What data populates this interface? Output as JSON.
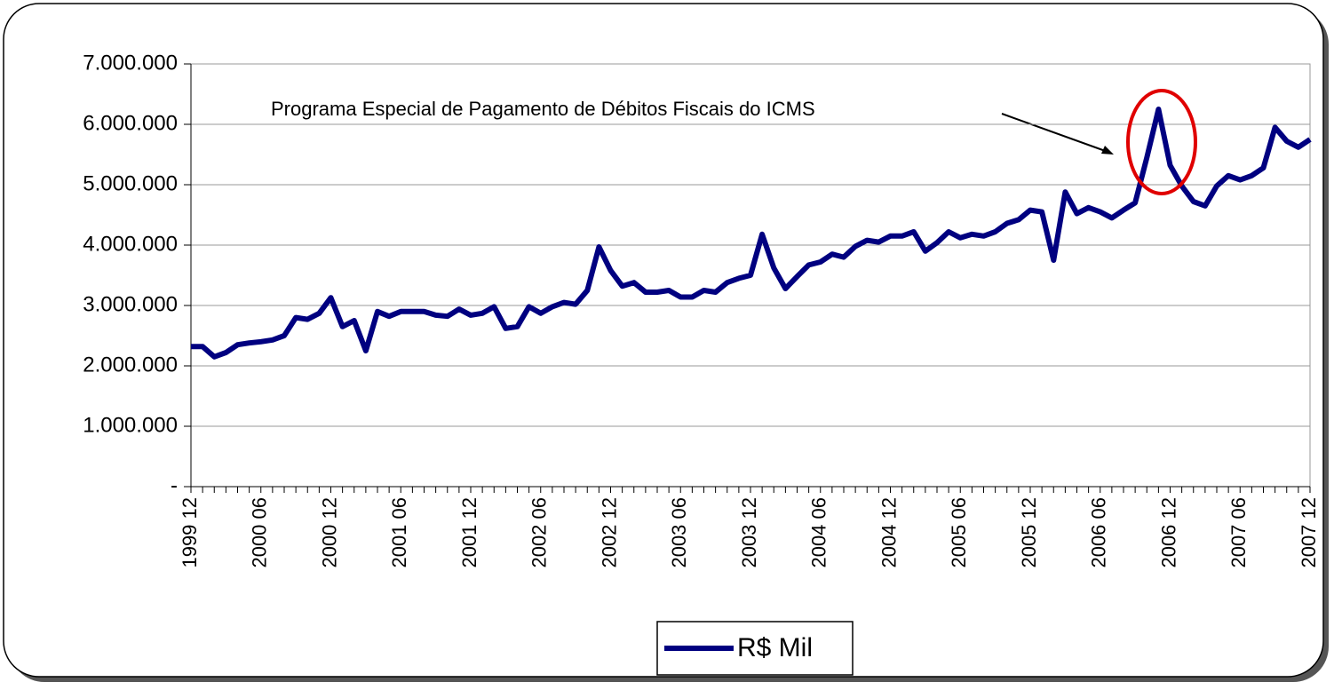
{
  "chart_data": {
    "type": "line",
    "annotation": "Programa Especial de Pagamento de Débitos Fiscais do ICMS",
    "categories": [
      "1999 12",
      null,
      null,
      null,
      null,
      null,
      "2000 06",
      null,
      null,
      null,
      null,
      null,
      "2000 12",
      null,
      null,
      null,
      null,
      null,
      "2001 06",
      null,
      null,
      null,
      null,
      null,
      "2001 12",
      null,
      null,
      null,
      null,
      null,
      "2002 06",
      null,
      null,
      null,
      null,
      null,
      "2002 12",
      null,
      null,
      null,
      null,
      null,
      "2003 06",
      null,
      null,
      null,
      null,
      null,
      "2003 12",
      null,
      null,
      null,
      null,
      null,
      "2004 06",
      null,
      null,
      null,
      null,
      null,
      "2004 12",
      null,
      null,
      null,
      null,
      null,
      "2005 06",
      null,
      null,
      null,
      null,
      null,
      "2005 12",
      null,
      null,
      null,
      null,
      null,
      "2006 06",
      null,
      null,
      null,
      null,
      null,
      "2006 12",
      null,
      null,
      null,
      null,
      null,
      "2007 06",
      null,
      null,
      null,
      null,
      null,
      "2007 12"
    ],
    "series": [
      {
        "name": "R$ Mil",
        "color": "#000080",
        "values": [
          2320000,
          2320000,
          2150000,
          2220000,
          2350000,
          2380000,
          2400000,
          2430000,
          2500000,
          2800000,
          2770000,
          2870000,
          3130000,
          2650000,
          2750000,
          2250000,
          2900000,
          2820000,
          2900000,
          2900000,
          2900000,
          2840000,
          2820000,
          2940000,
          2840000,
          2870000,
          2980000,
          2620000,
          2650000,
          2980000,
          2870000,
          2980000,
          3050000,
          3020000,
          3250000,
          3970000,
          3580000,
          3320000,
          3380000,
          3220000,
          3220000,
          3250000,
          3140000,
          3140000,
          3250000,
          3220000,
          3380000,
          3450000,
          3500000,
          4180000,
          3620000,
          3280000,
          3480000,
          3670000,
          3720000,
          3850000,
          3800000,
          3980000,
          4080000,
          4050000,
          4150000,
          4150000,
          4220000,
          3900000,
          4040000,
          4220000,
          4120000,
          4180000,
          4150000,
          4220000,
          4360000,
          4420000,
          4580000,
          4550000,
          3750000,
          4880000,
          4520000,
          4620000,
          4550000,
          4450000,
          4580000,
          4700000,
          5450000,
          6250000,
          5320000,
          4980000,
          4720000,
          4650000,
          4980000,
          5150000,
          5080000,
          5150000,
          5280000,
          5950000,
          5720000,
          5620000,
          5750000
        ]
      }
    ],
    "ylim": [
      0,
      7000000
    ],
    "yticks": [
      {
        "value": 0,
        "label": "-"
      },
      {
        "value": 1000000,
        "label": "1.000.000"
      },
      {
        "value": 2000000,
        "label": "2.000.000"
      },
      {
        "value": 3000000,
        "label": "3.000.000"
      },
      {
        "value": 4000000,
        "label": "4.000.000"
      },
      {
        "value": 5000000,
        "label": "5.000.000"
      },
      {
        "value": 6000000,
        "label": "6.000.000"
      },
      {
        "value": 7000000,
        "label": "7.000.000"
      }
    ],
    "grid": true,
    "legend": "bottom"
  }
}
